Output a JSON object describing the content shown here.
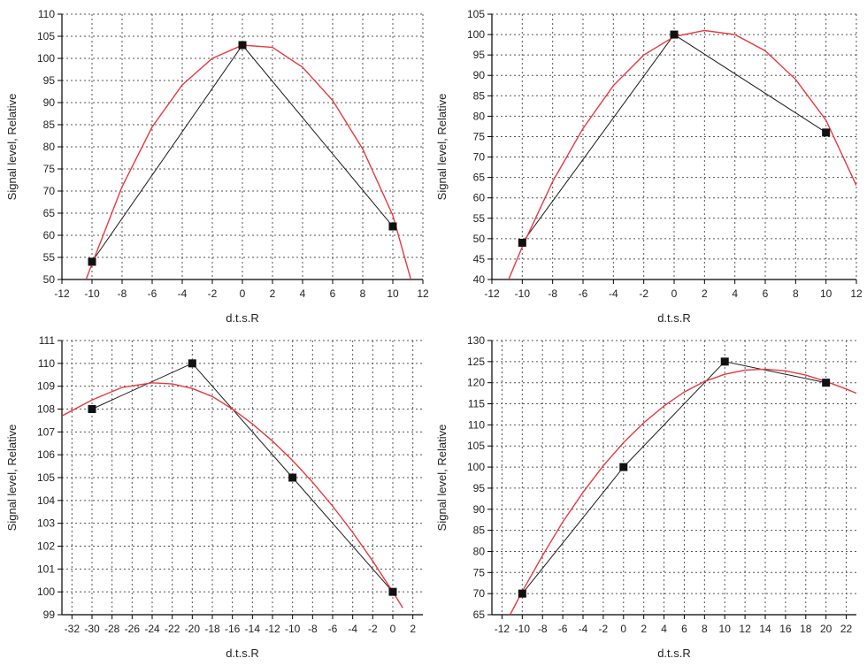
{
  "colors": {
    "fit_curve": "#e8393f",
    "data_line": "#1a1a1a",
    "marker": "#111111",
    "grid": "#555555",
    "axis": "#000000"
  },
  "chart_data": [
    {
      "type": "line",
      "position": "top-left",
      "xlabel": "d.t.s.R",
      "ylabel": "Signal level, Relative",
      "xlim": [
        -12,
        12
      ],
      "ylim": [
        50,
        110
      ],
      "xticks": [
        -12,
        -10,
        -8,
        -6,
        -4,
        -2,
        0,
        2,
        4,
        6,
        8,
        10,
        12
      ],
      "yticks": [
        50,
        55,
        60,
        65,
        70,
        75,
        80,
        85,
        90,
        95,
        100,
        105,
        110
      ],
      "grid": true,
      "series": [
        {
          "role": "measured",
          "x": [
            -10,
            0,
            10
          ],
          "y": [
            54,
            103,
            62
          ]
        },
        {
          "role": "fit",
          "x": [
            -10.4,
            -10,
            -8,
            -6,
            -4,
            -2,
            0,
            2,
            4,
            6,
            8,
            10,
            11.2
          ],
          "y": [
            50,
            53.5,
            71,
            84.5,
            94,
            100,
            103,
            102.5,
            98,
            90.5,
            79.5,
            64.5,
            50
          ]
        }
      ]
    },
    {
      "type": "line",
      "position": "top-right",
      "xlabel": "d.t.s.R",
      "ylabel": "Signal level, Relative",
      "xlim": [
        -12,
        12
      ],
      "ylim": [
        40,
        105
      ],
      "xticks": [
        -12,
        -10,
        -8,
        -6,
        -4,
        -2,
        0,
        2,
        4,
        6,
        8,
        10,
        12
      ],
      "yticks": [
        40,
        45,
        50,
        55,
        60,
        65,
        70,
        75,
        80,
        85,
        90,
        95,
        100,
        105
      ],
      "grid": true,
      "series": [
        {
          "role": "measured",
          "x": [
            -10,
            0,
            10
          ],
          "y": [
            49,
            100,
            76
          ]
        },
        {
          "role": "fit",
          "x": [
            -10.9,
            -10,
            -8,
            -6,
            -4,
            -2,
            0,
            2,
            4,
            6,
            8,
            10,
            12
          ],
          "y": [
            40,
            48,
            64,
            77,
            87.5,
            95,
            99.5,
            101,
            100,
            96,
            89,
            79,
            63
          ]
        }
      ]
    },
    {
      "type": "line",
      "position": "bottom-left",
      "xlabel": "d.t.s.R",
      "ylabel": "Signal level, Relative",
      "xlim": [
        -33,
        3
      ],
      "ylim": [
        99,
        111
      ],
      "xticks": [
        -32,
        -30,
        -28,
        -26,
        -24,
        -22,
        -20,
        -18,
        -16,
        -14,
        -12,
        -10,
        -8,
        -6,
        -4,
        -2,
        0,
        2
      ],
      "yticks": [
        99,
        100,
        101,
        102,
        103,
        104,
        105,
        106,
        107,
        108,
        109,
        110,
        111
      ],
      "grid": true,
      "series": [
        {
          "role": "measured",
          "x": [
            -30,
            -20,
            -10,
            0
          ],
          "y": [
            108,
            110,
            105,
            100
          ]
        },
        {
          "role": "fit",
          "x": [
            -33,
            -30,
            -27,
            -24,
            -22,
            -20,
            -18,
            -16,
            -14,
            -12,
            -10,
            -8,
            -6,
            -4,
            -2,
            0,
            1
          ],
          "y": [
            107.7,
            108.4,
            108.95,
            109.15,
            109.1,
            108.9,
            108.55,
            108.0,
            107.35,
            106.6,
            105.75,
            104.8,
            103.75,
            102.6,
            101.35,
            100.0,
            99.3
          ]
        }
      ]
    },
    {
      "type": "line",
      "position": "bottom-right",
      "xlabel": "d.t.s.R",
      "ylabel": "Signal level, Relative",
      "xlim": [
        -13,
        23
      ],
      "ylim": [
        65,
        130
      ],
      "xticks": [
        -12,
        -10,
        -8,
        -6,
        -4,
        -2,
        0,
        2,
        4,
        6,
        8,
        10,
        12,
        14,
        16,
        18,
        20,
        22
      ],
      "yticks": [
        65,
        70,
        75,
        80,
        85,
        90,
        95,
        100,
        105,
        110,
        115,
        120,
        125,
        130
      ],
      "grid": true,
      "series": [
        {
          "role": "measured",
          "x": [
            -10,
            0,
            10,
            20
          ],
          "y": [
            70,
            100,
            125,
            120
          ]
        },
        {
          "role": "fit",
          "x": [
            -11.2,
            -10,
            -8,
            -6,
            -4,
            -2,
            0,
            2,
            4,
            6,
            8,
            10,
            12,
            14,
            16,
            18,
            20,
            22,
            23
          ],
          "y": [
            65,
            70.5,
            79,
            87,
            94,
            100.3,
            105.8,
            110.5,
            114.5,
            117.8,
            120.3,
            122,
            123,
            123.2,
            122.8,
            121.8,
            120.3,
            118.5,
            117.5
          ]
        }
      ]
    }
  ]
}
